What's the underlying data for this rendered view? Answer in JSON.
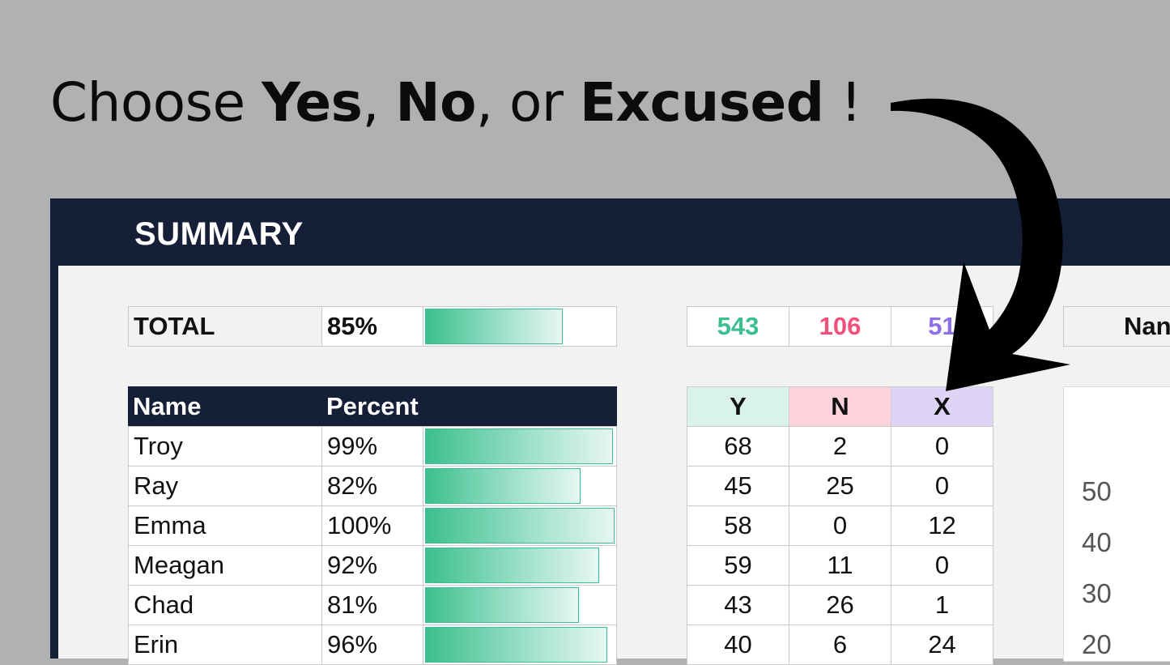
{
  "headline": {
    "p1": "Choose ",
    "yes": "Yes",
    "p2": ", ",
    "no": "No",
    "p3": ", or ",
    "excused": "Excused",
    "p4": " !"
  },
  "summary": {
    "title": "SUMMARY",
    "total": {
      "label": "TOTAL",
      "percent_text": "85%",
      "percent": 0.85
    },
    "totals_counts": [
      {
        "value": "543",
        "color": "#3cbf8f"
      },
      {
        "value": "106",
        "color": "#f0507a"
      },
      {
        "value": "51",
        "color": "#8e6fe6"
      }
    ],
    "table": {
      "headers": [
        "Name",
        "Percent"
      ],
      "count_headers": [
        {
          "label": "Y",
          "bg": "#d9f3ea"
        },
        {
          "label": "N",
          "bg": "#fcd2dd"
        },
        {
          "label": "X",
          "bg": "#ded4f6"
        }
      ],
      "rows": [
        {
          "name": "Troy",
          "percent_text": "99%",
          "percent": 0.99,
          "y": "68",
          "n": "2",
          "x": "0"
        },
        {
          "name": "Ray",
          "percent_text": "82%",
          "percent": 0.82,
          "y": "45",
          "n": "25",
          "x": "0"
        },
        {
          "name": "Emma",
          "percent_text": "100%",
          "percent": 1.0,
          "y": "58",
          "n": "0",
          "x": "12"
        },
        {
          "name": "Meagan",
          "percent_text": "92%",
          "percent": 0.92,
          "y": "59",
          "n": "11",
          "x": "0"
        },
        {
          "name": "Chad",
          "percent_text": "81%",
          "percent": 0.81,
          "y": "43",
          "n": "26",
          "x": "1"
        },
        {
          "name": "Erin",
          "percent_text": "96%",
          "percent": 0.96,
          "y": "40",
          "n": "6",
          "x": "24"
        }
      ]
    },
    "right_panel": {
      "header_partial": "Nan",
      "axis_ticks": [
        "50",
        "40",
        "30",
        "20"
      ]
    }
  }
}
